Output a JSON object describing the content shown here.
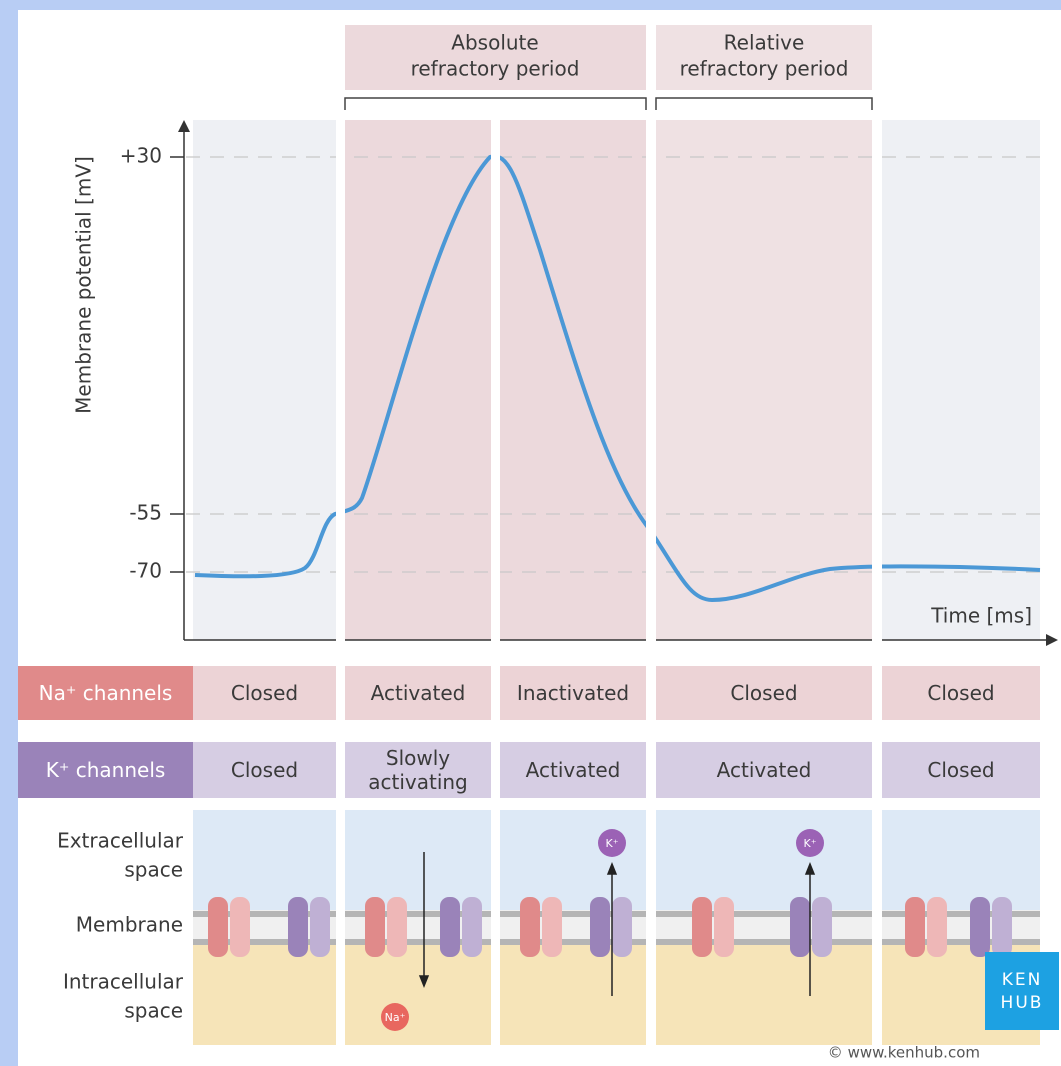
{
  "header": {
    "absolute": [
      "Absolute",
      "refractory period"
    ],
    "relative": [
      "Relative",
      "refractory period"
    ]
  },
  "y_axis": {
    "label": "Membrane potential [mV]",
    "ticks": [
      "+30",
      "-55",
      "-70"
    ]
  },
  "x_axis": {
    "label": "Time [ms]"
  },
  "table": {
    "rows": [
      {
        "label": "Na⁺ channels",
        "cells": [
          "Closed",
          "Activated",
          "Inactivated",
          "Closed",
          "Closed"
        ]
      },
      {
        "label": "K⁺ channels",
        "cells": [
          "Closed",
          "Slowly activating",
          "Activated",
          "Activated",
          "Closed"
        ]
      }
    ]
  },
  "spaces": {
    "extracellular": [
      "Extracellular",
      "space"
    ],
    "membrane": "Membrane",
    "intracellular": [
      "Intracellular",
      "space"
    ]
  },
  "ions": [
    "Na⁺",
    "K⁺",
    "K⁺"
  ],
  "logo": [
    "KEN",
    "HUB"
  ],
  "credit": "© www.kenhub.com"
}
